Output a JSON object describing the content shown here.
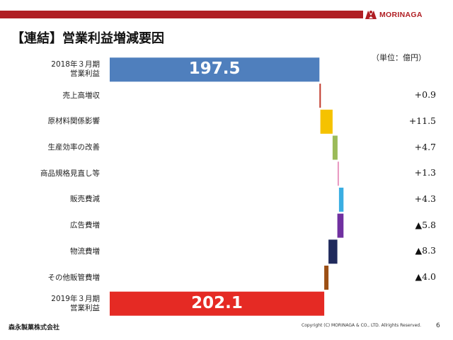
{
  "header": {
    "title": "【連結】営業利益増減要因",
    "brand_name": "MORINAGA",
    "unit": "（単位：億円）"
  },
  "colors": {
    "header_bar": "#b01e23",
    "brand": "#b01e23"
  },
  "chart_data": {
    "type": "bar",
    "orientation": "horizontal-waterfall",
    "unit": "億円",
    "categories": [
      [
        "2018年３月期",
        "営業利益"
      ],
      [
        "売上高増収"
      ],
      [
        "原材料関係影響"
      ],
      [
        "生産効率の改善"
      ],
      [
        "商品規格見直し等"
      ],
      [
        "販売費減"
      ],
      [
        "広告費増"
      ],
      [
        "物流費増"
      ],
      [
        "その他販管費増"
      ],
      [
        "2019年３月期",
        "営業利益"
      ]
    ],
    "values": [
      197.5,
      0.9,
      11.5,
      4.7,
      1.3,
      4.3,
      -5.8,
      -8.3,
      -4.0,
      202.1
    ],
    "kinds": [
      "total",
      "delta",
      "delta",
      "delta",
      "delta",
      "delta",
      "delta",
      "delta",
      "delta",
      "total"
    ],
    "value_labels": [
      "197.5",
      "+0.9",
      "+11.5",
      "+4.7",
      "+1.3",
      "+4.3",
      "▲5.8",
      "▲8.3",
      "▲4.0",
      "202.1"
    ],
    "colors": [
      "#4f7fbd",
      "#c0392b",
      "#f5c200",
      "#9bbb59",
      "#e896c0",
      "#3aaee2",
      "#7030a0",
      "#1f2a5c",
      "#9c4f14",
      "#e52a24"
    ],
    "xlim": [
      0,
      220
    ],
    "grid": false,
    "legend": "none"
  },
  "footer": {
    "company": "森永製菓株式会社",
    "copyright": "Copyright (C) MORINAGA & CO., LTD. Allrights Reserved.",
    "page_number": "6"
  }
}
